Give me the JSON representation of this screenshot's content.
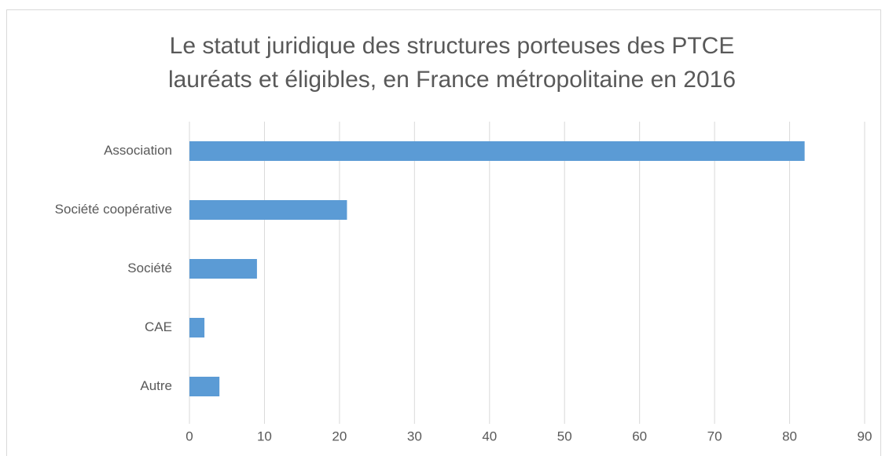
{
  "chart_data": {
    "type": "bar",
    "orientation": "horizontal",
    "title": [
      "Le statut juridique des structures porteuses des PTCE",
      "lauréats et éligibles, en France métropolitaine en 2016"
    ],
    "categories": [
      "Association",
      "Société coopérative",
      "Société",
      "CAE",
      "Autre"
    ],
    "values": [
      82,
      21,
      9,
      2,
      4
    ],
    "color": "#5b9bd5",
    "xlim": [
      0,
      90
    ],
    "xticks": [
      0,
      10,
      20,
      30,
      40,
      50,
      60,
      70,
      80,
      90
    ],
    "grid": true
  }
}
